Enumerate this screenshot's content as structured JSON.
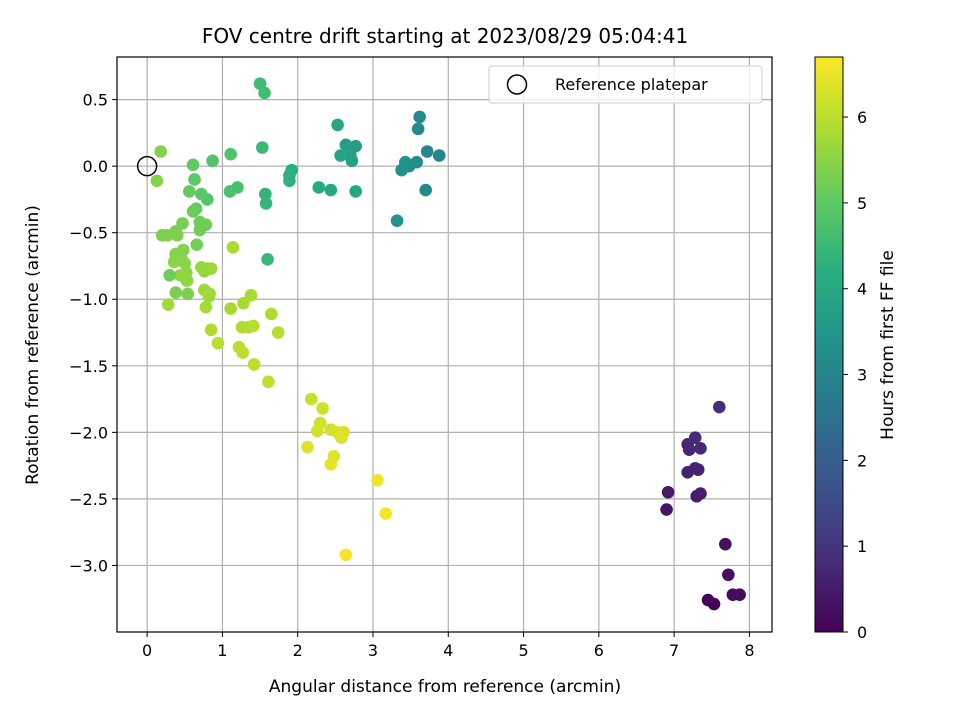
{
  "chart_data": {
    "type": "scatter",
    "title": "FOV centre drift starting at 2023/08/29 05:04:41",
    "xlabel": "Angular distance from reference (arcmin)",
    "ylabel": "Rotation from reference (arcmin)",
    "xlim": [
      -0.4,
      8.3
    ],
    "ylim": [
      -3.5,
      0.82
    ],
    "xticks": [
      0,
      1,
      2,
      3,
      4,
      5,
      6,
      7,
      8
    ],
    "xtick_labels": [
      "0",
      "1",
      "2",
      "3",
      "4",
      "5",
      "6",
      "7",
      "8"
    ],
    "yticks": [
      0.5,
      0.0,
      -0.5,
      -1.0,
      -1.5,
      -2.0,
      -2.5,
      -3.0
    ],
    "ytick_labels": [
      "0.5",
      "0.0",
      "−0.5",
      "−1.0",
      "−1.5",
      "−2.0",
      "−2.5",
      "−3.0"
    ],
    "grid": true,
    "legend": {
      "position": "top-right",
      "entries": [
        "Reference platepar"
      ]
    },
    "reference_point": {
      "name": "Reference platepar",
      "x": 0.0,
      "y": 0.0
    },
    "colorbar": {
      "label": "Hours from first FF file",
      "range": [
        0,
        6.7
      ],
      "ticks": [
        0,
        1,
        2,
        3,
        4,
        5,
        6
      ],
      "tick_labels": [
        "0",
        "1",
        "2",
        "3",
        "4",
        "5",
        "6"
      ],
      "colormap": "viridis"
    },
    "points": [
      {
        "x": 7.53,
        "y": -3.29,
        "h": 0.05
      },
      {
        "x": 7.45,
        "y": -3.26,
        "h": 0.1
      },
      {
        "x": 7.78,
        "y": -3.22,
        "h": 0.15
      },
      {
        "x": 7.87,
        "y": -3.22,
        "h": 0.2
      },
      {
        "x": 7.72,
        "y": -3.07,
        "h": 0.25
      },
      {
        "x": 7.68,
        "y": -2.84,
        "h": 0.3
      },
      {
        "x": 6.9,
        "y": -2.58,
        "h": 0.4
      },
      {
        "x": 6.92,
        "y": -2.45,
        "h": 0.45
      },
      {
        "x": 7.3,
        "y": -2.48,
        "h": 0.5
      },
      {
        "x": 7.35,
        "y": -2.46,
        "h": 0.55
      },
      {
        "x": 7.18,
        "y": -2.3,
        "h": 0.6
      },
      {
        "x": 7.28,
        "y": -2.27,
        "h": 0.62
      },
      {
        "x": 7.32,
        "y": -2.28,
        "h": 0.65
      },
      {
        "x": 7.2,
        "y": -2.13,
        "h": 0.7
      },
      {
        "x": 7.18,
        "y": -2.09,
        "h": 0.72
      },
      {
        "x": 7.35,
        "y": -2.12,
        "h": 0.75
      },
      {
        "x": 7.28,
        "y": -2.04,
        "h": 0.78
      },
      {
        "x": 7.6,
        "y": -1.81,
        "h": 0.85
      },
      {
        "x": 3.88,
        "y": 0.08,
        "h": 3.0
      },
      {
        "x": 3.72,
        "y": 0.11,
        "h": 3.05
      },
      {
        "x": 3.62,
        "y": 0.37,
        "h": 3.1
      },
      {
        "x": 3.6,
        "y": 0.28,
        "h": 3.15
      },
      {
        "x": 3.7,
        "y": -0.18,
        "h": 3.2
      },
      {
        "x": 3.58,
        "y": 0.03,
        "h": 3.25
      },
      {
        "x": 3.48,
        "y": 0.0,
        "h": 3.3
      },
      {
        "x": 3.43,
        "y": 0.03,
        "h": 3.35
      },
      {
        "x": 3.38,
        "y": -0.03,
        "h": 3.4
      },
      {
        "x": 3.32,
        "y": -0.41,
        "h": 3.45
      },
      {
        "x": 2.77,
        "y": 0.15,
        "h": 3.7
      },
      {
        "x": 2.64,
        "y": 0.16,
        "h": 3.75
      },
      {
        "x": 2.7,
        "y": 0.08,
        "h": 3.8
      },
      {
        "x": 2.72,
        "y": 0.04,
        "h": 3.85
      },
      {
        "x": 2.57,
        "y": 0.08,
        "h": 3.9
      },
      {
        "x": 2.53,
        "y": 0.31,
        "h": 3.95
      },
      {
        "x": 2.77,
        "y": -0.19,
        "h": 4.0
      },
      {
        "x": 2.44,
        "y": -0.18,
        "h": 4.05
      },
      {
        "x": 2.28,
        "y": -0.16,
        "h": 4.1
      },
      {
        "x": 1.92,
        "y": -0.03,
        "h": 4.2
      },
      {
        "x": 1.89,
        "y": -0.07,
        "h": 4.25
      },
      {
        "x": 1.89,
        "y": -0.11,
        "h": 4.3
      },
      {
        "x": 1.57,
        "y": -0.21,
        "h": 4.35
      },
      {
        "x": 1.58,
        "y": -0.28,
        "h": 4.4
      },
      {
        "x": 1.6,
        "y": -0.7,
        "h": 4.45
      },
      {
        "x": 1.53,
        "y": 0.14,
        "h": 4.5
      },
      {
        "x": 1.5,
        "y": 0.62,
        "h": 4.55
      },
      {
        "x": 1.56,
        "y": 0.55,
        "h": 4.6
      },
      {
        "x": 1.2,
        "y": -0.16,
        "h": 4.7
      },
      {
        "x": 1.1,
        "y": -0.19,
        "h": 4.75
      },
      {
        "x": 1.11,
        "y": 0.09,
        "h": 4.8
      },
      {
        "x": 0.87,
        "y": 0.04,
        "h": 4.85
      },
      {
        "x": 0.8,
        "y": -0.25,
        "h": 4.9
      },
      {
        "x": 0.72,
        "y": -0.21,
        "h": 4.95
      },
      {
        "x": 0.63,
        "y": -0.1,
        "h": 5.0
      },
      {
        "x": 0.61,
        "y": 0.01,
        "h": 5.05
      },
      {
        "x": 0.56,
        "y": -0.19,
        "h": 5.1
      },
      {
        "x": 0.65,
        "y": -0.32,
        "h": 5.12
      },
      {
        "x": 0.61,
        "y": -0.34,
        "h": 5.15
      },
      {
        "x": 0.7,
        "y": -0.42,
        "h": 5.18
      },
      {
        "x": 0.78,
        "y": -0.44,
        "h": 5.2
      },
      {
        "x": 0.7,
        "y": -0.48,
        "h": 5.22
      },
      {
        "x": 0.66,
        "y": -0.59,
        "h": 5.25
      },
      {
        "x": 0.47,
        "y": -0.43,
        "h": 5.28
      },
      {
        "x": 0.38,
        "y": -0.49,
        "h": 5.3
      },
      {
        "x": 0.2,
        "y": -0.52,
        "h": 5.33
      },
      {
        "x": 0.27,
        "y": -0.52,
        "h": 5.35
      },
      {
        "x": 0.4,
        "y": -0.52,
        "h": 5.37
      },
      {
        "x": 0.48,
        "y": -0.63,
        "h": 5.4
      },
      {
        "x": 0.38,
        "y": -0.66,
        "h": 5.42
      },
      {
        "x": 0.46,
        "y": -0.7,
        "h": 5.45
      },
      {
        "x": 0.5,
        "y": -0.73,
        "h": 5.47
      },
      {
        "x": 0.36,
        "y": -0.72,
        "h": 5.5
      },
      {
        "x": 0.52,
        "y": -0.8,
        "h": 5.52
      },
      {
        "x": 0.44,
        "y": -0.82,
        "h": 5.55
      },
      {
        "x": 0.53,
        "y": -0.86,
        "h": 5.57
      },
      {
        "x": 0.72,
        "y": -0.76,
        "h": 5.6
      },
      {
        "x": 0.81,
        "y": -0.77,
        "h": 5.62
      },
      {
        "x": 0.76,
        "y": -0.79,
        "h": 5.64
      },
      {
        "x": 0.85,
        "y": -0.77,
        "h": 5.66
      },
      {
        "x": 0.3,
        "y": -0.82,
        "h": 5.2
      },
      {
        "x": 0.38,
        "y": -0.95,
        "h": 5.3
      },
      {
        "x": 0.54,
        "y": -0.96,
        "h": 5.35
      },
      {
        "x": 0.76,
        "y": -0.93,
        "h": 5.68
      },
      {
        "x": 0.83,
        "y": -0.96,
        "h": 5.7
      },
      {
        "x": 0.82,
        "y": -0.98,
        "h": 5.72
      },
      {
        "x": 0.28,
        "y": -1.04,
        "h": 5.74
      },
      {
        "x": 0.78,
        "y": -1.06,
        "h": 5.76
      },
      {
        "x": 1.11,
        "y": -1.07,
        "h": 5.78
      },
      {
        "x": 1.28,
        "y": -1.03,
        "h": 5.8
      },
      {
        "x": 1.38,
        "y": -0.97,
        "h": 5.82
      },
      {
        "x": 1.14,
        "y": -0.61,
        "h": 5.84
      },
      {
        "x": 1.65,
        "y": -1.11,
        "h": 5.86
      },
      {
        "x": 0.85,
        "y": -1.23,
        "h": 5.88
      },
      {
        "x": 1.26,
        "y": -1.21,
        "h": 5.9
      },
      {
        "x": 1.35,
        "y": -1.21,
        "h": 5.92
      },
      {
        "x": 1.41,
        "y": -1.2,
        "h": 5.94
      },
      {
        "x": 1.74,
        "y": -1.25,
        "h": 5.96
      },
      {
        "x": 0.94,
        "y": -1.33,
        "h": 5.98
      },
      {
        "x": 1.22,
        "y": -1.36,
        "h": 6.0
      },
      {
        "x": 1.27,
        "y": -1.4,
        "h": 6.02
      },
      {
        "x": 1.42,
        "y": -1.49,
        "h": 6.04
      },
      {
        "x": 1.61,
        "y": -1.62,
        "h": 6.06
      },
      {
        "x": 0.18,
        "y": 0.11,
        "h": 5.4
      },
      {
        "x": 0.13,
        "y": -0.11,
        "h": 5.45
      },
      {
        "x": 2.18,
        "y": -1.75,
        "h": 6.15
      },
      {
        "x": 2.33,
        "y": -1.82,
        "h": 6.2
      },
      {
        "x": 2.3,
        "y": -1.93,
        "h": 6.22
      },
      {
        "x": 2.26,
        "y": -1.99,
        "h": 6.25
      },
      {
        "x": 2.44,
        "y": -1.98,
        "h": 6.28
      },
      {
        "x": 2.53,
        "y": -2.0,
        "h": 6.3
      },
      {
        "x": 2.58,
        "y": -2.04,
        "h": 6.33
      },
      {
        "x": 2.61,
        "y": -2.0,
        "h": 6.35
      },
      {
        "x": 2.13,
        "y": -2.11,
        "h": 6.38
      },
      {
        "x": 2.48,
        "y": -2.18,
        "h": 6.4
      },
      {
        "x": 2.44,
        "y": -2.24,
        "h": 6.45
      },
      {
        "x": 3.06,
        "y": -2.36,
        "h": 6.55
      },
      {
        "x": 3.17,
        "y": -2.61,
        "h": 6.6
      },
      {
        "x": 2.64,
        "y": -2.92,
        "h": 6.65
      }
    ]
  }
}
